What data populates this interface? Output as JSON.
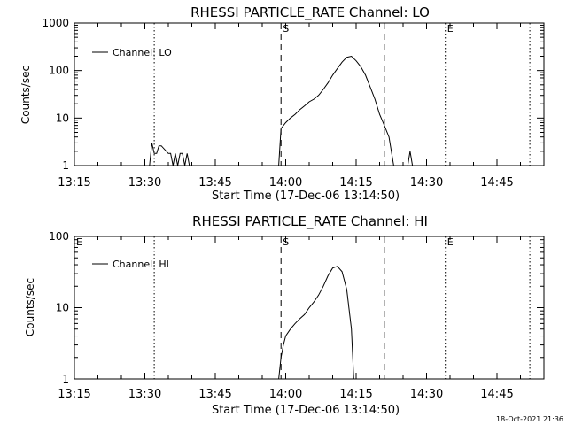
{
  "footer": {
    "timestamp": "18-Oct-2021 21:36"
  },
  "chart_data": [
    {
      "type": "line",
      "title": "RHESSI PARTICLE_RATE Channel: LO",
      "xlabel": "Start Time (17-Dec-06 13:14:50)",
      "ylabel": "Counts/sec",
      "yscale": "log",
      "ylim": [
        1,
        1000
      ],
      "xlim_minutes_after_13:15": [
        0,
        100
      ],
      "xticks": [
        "13:15",
        "13:30",
        "13:45",
        "14:00",
        "14:15",
        "14:30",
        "14:45"
      ],
      "yticks": [
        "1",
        "10",
        "100",
        "1000"
      ],
      "legend": {
        "placement": "top-left",
        "entries": [
          "Channel: LO"
        ]
      },
      "markers": [
        {
          "time": "13:32",
          "style": "dotted",
          "label": ""
        },
        {
          "time": "13:59",
          "style": "dashed",
          "label": "S"
        },
        {
          "time": "14:21",
          "style": "dashed",
          "label": ""
        },
        {
          "time": "14:34",
          "style": "dotted",
          "label": "E"
        },
        {
          "time": "14:52",
          "style": "dotted",
          "label": ""
        }
      ],
      "series": [
        {
          "name": "Channel: LO",
          "x": [
            "13:31:00",
            "13:31:30",
            "13:32:00",
            "13:32:30",
            "13:33:00",
            "13:33:30",
            "13:35:00",
            "13:35:30",
            "13:36:00",
            "13:36:30",
            "13:37:00",
            "13:37:30",
            "13:38:00",
            "13:38:30",
            "13:39:00",
            "13:39:30",
            "13:58:30",
            "13:59:00",
            "14:00:00",
            "14:01:00",
            "14:02:00",
            "14:03:00",
            "14:04:00",
            "14:05:00",
            "14:06:00",
            "14:07:00",
            "14:08:00",
            "14:09:00",
            "14:10:00",
            "14:11:00",
            "14:12:00",
            "14:13:00",
            "14:14:00",
            "14:15:00",
            "14:16:00",
            "14:17:00",
            "14:18:00",
            "14:19:00",
            "14:20:00",
            "14:21:00",
            "14:22:00",
            "14:23:00",
            "14:26:00",
            "14:26:30",
            "14:27:00"
          ],
          "y": [
            1,
            3,
            1.8,
            1.8,
            2.6,
            2.6,
            1.8,
            1.8,
            1,
            1.8,
            1,
            1.8,
            1.8,
            1,
            1.8,
            1,
            1,
            6,
            8,
            10,
            12,
            15,
            18,
            22,
            25,
            30,
            40,
            55,
            80,
            110,
            150,
            190,
            200,
            160,
            120,
            80,
            45,
            25,
            12,
            7,
            4,
            1,
            1,
            2,
            1
          ]
        }
      ]
    },
    {
      "type": "line",
      "title": "RHESSI PARTICLE_RATE Channel: HI",
      "xlabel": "Start Time (17-Dec-06 13:14:50)",
      "ylabel": "Counts/sec",
      "yscale": "log",
      "ylim": [
        1,
        100
      ],
      "xlim_minutes_after_13:15": [
        0,
        100
      ],
      "xticks": [
        "13:15",
        "13:30",
        "13:45",
        "14:00",
        "14:15",
        "14:30",
        "14:45"
      ],
      "yticks": [
        "1",
        "10",
        "100"
      ],
      "legend": {
        "placement": "top-left",
        "entries": [
          "Channel: HI"
        ]
      },
      "markers": [
        {
          "time": "13:15",
          "style": "none",
          "label": "E"
        },
        {
          "time": "13:32",
          "style": "dotted",
          "label": ""
        },
        {
          "time": "13:59",
          "style": "dashed",
          "label": "S"
        },
        {
          "time": "14:21",
          "style": "dashed",
          "label": ""
        },
        {
          "time": "14:34",
          "style": "dotted",
          "label": "E"
        },
        {
          "time": "14:52",
          "style": "dotted",
          "label": ""
        }
      ],
      "series": [
        {
          "name": "Channel: HI",
          "x": [
            "13:58:30",
            "13:59:00",
            "13:59:30",
            "14:00:00",
            "14:01:00",
            "14:02:00",
            "14:03:00",
            "14:04:00",
            "14:05:00",
            "14:06:00",
            "14:07:00",
            "14:08:00",
            "14:09:00",
            "14:10:00",
            "14:11:00",
            "14:12:00",
            "14:13:00",
            "14:14:00",
            "14:14:30"
          ],
          "y": [
            1,
            2,
            3,
            4,
            5,
            6,
            7,
            8,
            10,
            12,
            15,
            20,
            28,
            36,
            38,
            32,
            18,
            5,
            1
          ]
        }
      ]
    }
  ]
}
